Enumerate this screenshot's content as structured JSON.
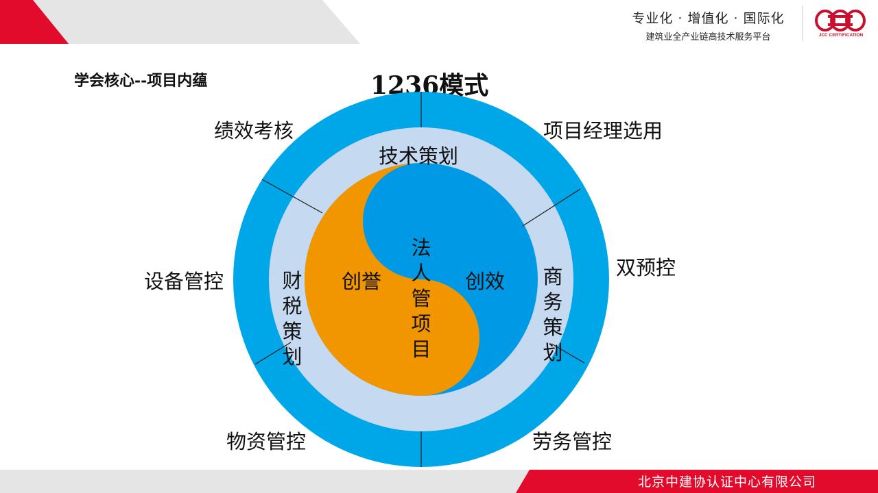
{
  "header": {
    "tagline": "专业化 · 增值化 · 国际化",
    "subline": "建筑业全产业链高技术服务平台",
    "logo_text": "JCC CERTIFICATION",
    "accent_color": "#e30b2b",
    "gray_color": "#e5e5e5"
  },
  "section_title": "学会核心--项目内蕴",
  "main_title": "1236模式",
  "diagram": {
    "outer_ring": {
      "color": "#00a7e8",
      "labels": {
        "top_left": "绩效考核",
        "top_right": "项目经理选用",
        "right": "双预控",
        "bottom_right": "劳务管控",
        "bottom_left": "物资管控",
        "left": "设备管控"
      }
    },
    "middle_ring": {
      "color": "#c5d9f1",
      "labels": {
        "top": "技术策划",
        "left": "财税策划",
        "right": "商务策划"
      }
    },
    "core": {
      "left_color": "#f29600",
      "right_color": "#0099e6",
      "left_label": "创誉",
      "right_label": "创效",
      "center_label": "法人管项目"
    }
  },
  "footer": {
    "company": "北京中建协认证中心有限公司"
  }
}
